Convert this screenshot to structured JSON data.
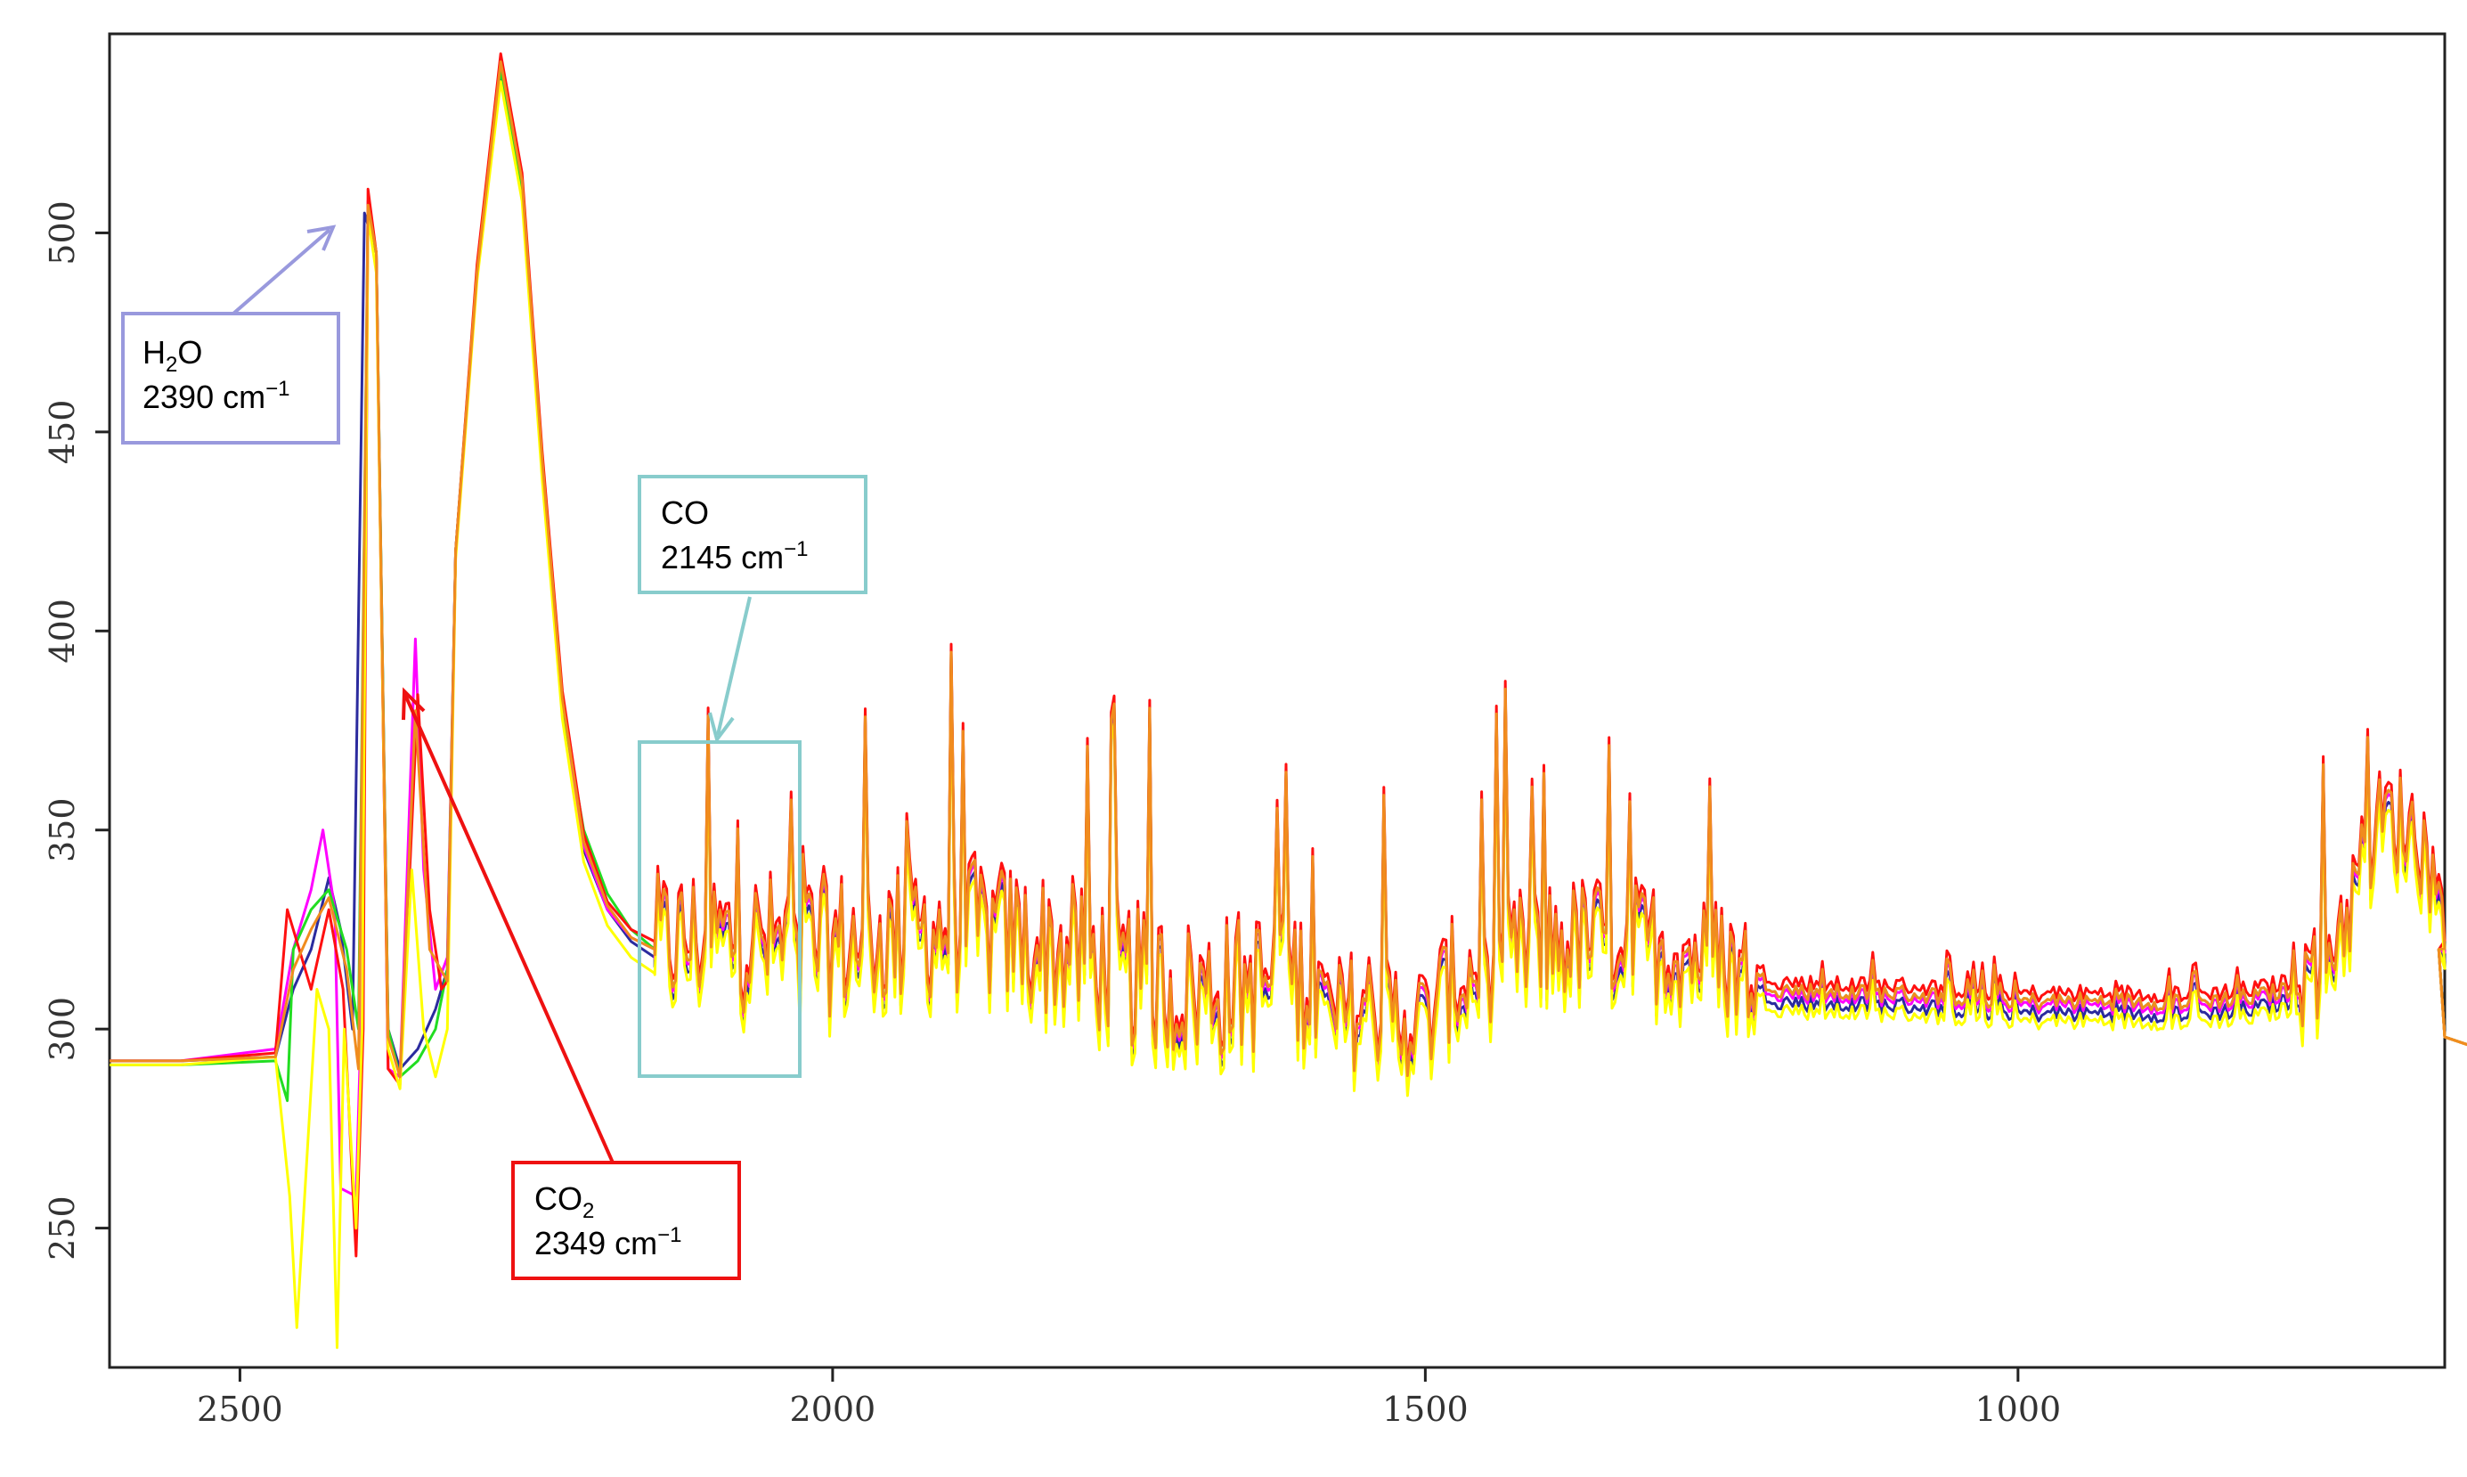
{
  "chart_data": {
    "type": "line",
    "title": "",
    "xlabel": "",
    "ylabel": "",
    "xlim": [
      2610,
      640
    ],
    "ylim": [
      215,
      550
    ],
    "x_ticks": [
      2500,
      2000,
      1500,
      1000
    ],
    "y_ticks": [
      250,
      300,
      350,
      400,
      450,
      500
    ],
    "grid": false,
    "legend": "none",
    "series": [
      {
        "color": "#2b2b9e",
        "offset": -2,
        "points": [
          [
            2610,
            292
          ],
          [
            2550,
            292
          ],
          [
            2470,
            293
          ],
          [
            2455,
            310
          ],
          [
            2440,
            320
          ],
          [
            2425,
            338
          ],
          [
            2415,
            325
          ],
          [
            2405,
            300
          ],
          [
            2395,
            505
          ],
          [
            2385,
            495
          ],
          [
            2375,
            300
          ],
          [
            2365,
            290
          ],
          [
            2350,
            295
          ],
          [
            2335,
            305
          ],
          [
            2325,
            315
          ],
          [
            2318,
            420
          ],
          [
            2300,
            490
          ],
          [
            2280,
            540
          ],
          [
            2262,
            510
          ],
          [
            2245,
            440
          ],
          [
            2228,
            380
          ],
          [
            2210,
            345
          ],
          [
            2190,
            330
          ],
          [
            2170,
            322
          ],
          [
            2150,
            318
          ]
        ]
      },
      {
        "color": "#ff00ff",
        "offset": 0,
        "points": [
          [
            2610,
            292
          ],
          [
            2550,
            292
          ],
          [
            2470,
            295
          ],
          [
            2455,
            320
          ],
          [
            2440,
            335
          ],
          [
            2430,
            350
          ],
          [
            2420,
            330
          ],
          [
            2415,
            260
          ],
          [
            2402,
            258
          ],
          [
            2398,
            300
          ],
          [
            2392,
            508
          ],
          [
            2385,
            495
          ],
          [
            2375,
            290
          ],
          [
            2365,
            288
          ],
          [
            2352,
            398
          ],
          [
            2345,
            340
          ],
          [
            2335,
            310
          ],
          [
            2325,
            318
          ],
          [
            2318,
            420
          ],
          [
            2300,
            490
          ],
          [
            2280,
            542
          ],
          [
            2262,
            512
          ],
          [
            2245,
            442
          ],
          [
            2228,
            382
          ],
          [
            2210,
            346
          ],
          [
            2190,
            330
          ],
          [
            2170,
            323
          ],
          [
            2150,
            320
          ]
        ]
      },
      {
        "color": "#22dd22",
        "offset": 1,
        "points": [
          [
            2610,
            291
          ],
          [
            2550,
            291
          ],
          [
            2470,
            292
          ],
          [
            2460,
            282
          ],
          [
            2455,
            320
          ],
          [
            2440,
            330
          ],
          [
            2425,
            335
          ],
          [
            2410,
            320
          ],
          [
            2400,
            300
          ],
          [
            2392,
            506
          ],
          [
            2385,
            495
          ],
          [
            2375,
            300
          ],
          [
            2365,
            288
          ],
          [
            2350,
            292
          ],
          [
            2335,
            300
          ],
          [
            2325,
            315
          ],
          [
            2318,
            420
          ],
          [
            2300,
            491
          ],
          [
            2280,
            541
          ],
          [
            2262,
            511
          ],
          [
            2245,
            441
          ],
          [
            2228,
            381
          ],
          [
            2210,
            350
          ],
          [
            2190,
            334
          ],
          [
            2170,
            325
          ],
          [
            2150,
            320
          ]
        ]
      },
      {
        "color": "#ff1010",
        "offset": 3,
        "points": [
          [
            2610,
            292
          ],
          [
            2550,
            292
          ],
          [
            2470,
            294
          ],
          [
            2460,
            330
          ],
          [
            2450,
            320
          ],
          [
            2440,
            310
          ],
          [
            2425,
            330
          ],
          [
            2413,
            310
          ],
          [
            2402,
            243
          ],
          [
            2396,
            300
          ],
          [
            2392,
            511
          ],
          [
            2385,
            495
          ],
          [
            2375,
            290
          ],
          [
            2365,
            286
          ],
          [
            2350,
            384
          ],
          [
            2340,
            330
          ],
          [
            2330,
            310
          ],
          [
            2325,
            312
          ],
          [
            2318,
            420
          ],
          [
            2300,
            492
          ],
          [
            2280,
            545
          ],
          [
            2262,
            515
          ],
          [
            2245,
            445
          ],
          [
            2228,
            385
          ],
          [
            2210,
            349
          ],
          [
            2190,
            332
          ],
          [
            2170,
            325
          ],
          [
            2150,
            322
          ]
        ]
      },
      {
        "color": "#ffff00",
        "offset": -4,
        "points": [
          [
            2610,
            291
          ],
          [
            2550,
            291
          ],
          [
            2470,
            293
          ],
          [
            2458,
            258
          ],
          [
            2452,
            225
          ],
          [
            2445,
            260
          ],
          [
            2435,
            310
          ],
          [
            2425,
            300
          ],
          [
            2418,
            220
          ],
          [
            2412,
            300
          ],
          [
            2402,
            250
          ],
          [
            2397,
            300
          ],
          [
            2392,
            504
          ],
          [
            2385,
            490
          ],
          [
            2375,
            295
          ],
          [
            2365,
            285
          ],
          [
            2355,
            340
          ],
          [
            2345,
            300
          ],
          [
            2335,
            288
          ],
          [
            2325,
            300
          ],
          [
            2318,
            418
          ],
          [
            2300,
            488
          ],
          [
            2280,
            538
          ],
          [
            2262,
            508
          ],
          [
            2245,
            438
          ],
          [
            2228,
            378
          ],
          [
            2210,
            342
          ],
          [
            2190,
            326
          ],
          [
            2170,
            318
          ],
          [
            2150,
            314
          ]
        ]
      },
      {
        "color": "#f08c1e",
        "offset": 1,
        "points": [
          [
            2610,
            292
          ],
          [
            2550,
            292
          ],
          [
            2470,
            293
          ],
          [
            2455,
            315
          ],
          [
            2440,
            325
          ],
          [
            2425,
            333
          ],
          [
            2410,
            315
          ],
          [
            2400,
            290
          ],
          [
            2392,
            507
          ],
          [
            2385,
            495
          ],
          [
            2375,
            298
          ],
          [
            2365,
            288
          ],
          [
            2352,
            380
          ],
          [
            2340,
            320
          ],
          [
            2325,
            312
          ],
          [
            2318,
            420
          ],
          [
            2300,
            490
          ],
          [
            2280,
            543
          ],
          [
            2262,
            513
          ],
          [
            2245,
            443
          ],
          [
            2228,
            383
          ],
          [
            2210,
            347
          ],
          [
            2190,
            331
          ],
          [
            2170,
            323
          ],
          [
            2150,
            320
          ]
        ]
      }
    ],
    "noisy_envelope": [
      [
        2150,
        320
      ],
      [
        2100,
        322
      ],
      [
        2050,
        320
      ],
      [
        2000,
        320
      ],
      [
        1950,
        322
      ],
      [
        1900,
        325
      ],
      [
        1850,
        322
      ],
      [
        1800,
        318
      ],
      [
        1750,
        312
      ],
      [
        1700,
        308
      ],
      [
        1650,
        310
      ],
      [
        1600,
        312
      ],
      [
        1580,
        300
      ],
      [
        1550,
        305
      ],
      [
        1500,
        300
      ],
      [
        1480,
        310
      ],
      [
        1450,
        315
      ],
      [
        1400,
        320
      ],
      [
        1350,
        322
      ],
      [
        1300,
        320
      ],
      [
        1250,
        316
      ],
      [
        1220,
        312
      ],
      [
        1200,
        309
      ],
      [
        1150,
        308
      ],
      [
        1100,
        308
      ],
      [
        1050,
        307
      ],
      [
        1000,
        306
      ],
      [
        950,
        306
      ],
      [
        900,
        306
      ],
      [
        850,
        306
      ],
      [
        800,
        307
      ],
      [
        760,
        310
      ],
      [
        740,
        318
      ],
      [
        720,
        330
      ],
      [
        705,
        345
      ],
      [
        690,
        352
      ],
      [
        670,
        350
      ],
      [
        650,
        340
      ],
      [
        640,
        325
      ]
    ]
  },
  "annotations": [
    {
      "id": "h2o",
      "species": "H",
      "sub": "2",
      "species_tail": "O",
      "wavenumber": "2390 cm",
      "sup": "−1",
      "color": "#9999dd"
    },
    {
      "id": "co",
      "species": "CO",
      "sub": "",
      "species_tail": "",
      "wavenumber": "2145 cm",
      "sup": "−1",
      "color": "#88cccc"
    },
    {
      "id": "co2",
      "species": "CO",
      "sub": "2",
      "species_tail": "",
      "wavenumber": "2349 cm",
      "sup": "−1",
      "color": "#ee1111"
    }
  ]
}
